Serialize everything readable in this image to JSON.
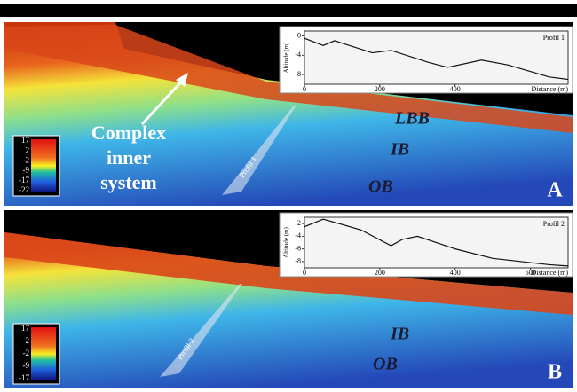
{
  "panels": [
    {
      "label": "A",
      "annotation": [
        "Complex",
        "inner",
        "system"
      ],
      "zones": [
        "LBB",
        "IB",
        "OB"
      ],
      "colorbar": [
        "17",
        "2",
        "-2",
        "-9",
        "-17",
        "-22"
      ],
      "inset": {
        "title": "Profil 1",
        "transect": "Profil 1",
        "y_label": "Altitude (m)",
        "x_label": "Distance (m)",
        "xlim": [
          0,
          700
        ],
        "ylim": [
          -10,
          1
        ],
        "xticks": [
          0,
          200,
          400
        ],
        "yticks": [
          0,
          -4,
          -8
        ],
        "x": [
          0,
          50,
          80,
          180,
          230,
          330,
          380,
          470,
          540,
          650,
          700
        ],
        "values": [
          -0.5,
          -2,
          -1,
          -3.5,
          -3,
          -5.5,
          -6.5,
          -5,
          -6,
          -8.5,
          -9
        ]
      }
    },
    {
      "label": "B",
      "annotation": [],
      "zones": [
        "IB",
        "OB"
      ],
      "colorbar": [
        "17",
        "2",
        "-2",
        "-9",
        "-17"
      ],
      "inset": {
        "title": "Profil 2",
        "transect": "Profil 2",
        "y_label": "Altitude (m)",
        "x_label": "Distance (m)",
        "xlim": [
          0,
          700
        ],
        "ylim": [
          -9,
          -1
        ],
        "xticks": [
          0,
          200,
          400,
          600
        ],
        "yticks": [
          -2,
          -4,
          -6,
          -8
        ],
        "x": [
          0,
          50,
          150,
          230,
          260,
          300,
          400,
          500,
          650,
          700
        ],
        "values": [
          -2.5,
          -1.3,
          -3,
          -5.5,
          -4.5,
          -4,
          -6,
          -7.5,
          -8.5,
          -8.7
        ]
      }
    }
  ]
}
